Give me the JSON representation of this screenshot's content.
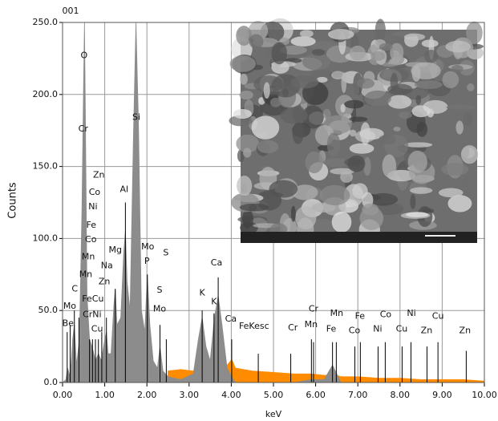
{
  "chart_data": {
    "type": "spectrum",
    "title": "001",
    "x_label": "keV",
    "y_label": "Counts",
    "xlim": [
      0,
      10
    ],
    "ylim": [
      0,
      250
    ],
    "xticks": [
      {
        "value": 0,
        "label": "0.00"
      },
      {
        "value": 1,
        "label": "1.00"
      },
      {
        "value": 2,
        "label": "2.00"
      },
      {
        "value": 3,
        "label": "3.00"
      },
      {
        "value": 4,
        "label": "4.00"
      },
      {
        "value": 5,
        "label": "5.00"
      },
      {
        "value": 6,
        "label": "6.00"
      },
      {
        "value": 7,
        "label": "7.00"
      },
      {
        "value": 8,
        "label": "8.00"
      },
      {
        "value": 9,
        "label": "9.00"
      },
      {
        "value": 10,
        "label": "10.00"
      }
    ],
    "yticks": [
      {
        "value": 0,
        "label": "0.0"
      },
      {
        "value": 50,
        "label": "50.0"
      },
      {
        "value": 100,
        "label": "100.0"
      },
      {
        "value": 150,
        "label": "150.0"
      },
      {
        "value": 200,
        "label": "200.0"
      },
      {
        "value": 250,
        "label": "250.0"
      }
    ],
    "grid": true,
    "x": [
      0,
      0.08,
      0.12,
      0.18,
      0.24,
      0.28,
      0.33,
      0.4,
      0.46,
      0.5,
      0.52,
      0.54,
      0.58,
      0.64,
      0.7,
      0.78,
      0.85,
      0.92,
      1.0,
      1.04,
      1.08,
      1.15,
      1.22,
      1.25,
      1.29,
      1.38,
      1.45,
      1.49,
      1.53,
      1.6,
      1.68,
      1.74,
      1.8,
      1.87,
      1.95,
      2.01,
      2.07,
      2.15,
      2.25,
      2.31,
      2.38,
      2.5,
      2.8,
      3.1,
      3.22,
      3.31,
      3.4,
      3.5,
      3.6,
      3.69,
      3.78,
      3.9,
      4.01,
      4.1,
      4.5,
      5.0,
      5.5,
      5.9,
      6.2,
      6.32,
      6.4,
      6.5,
      6.6,
      7.0,
      7.5,
      8.0,
      8.5,
      9.0,
      9.5,
      10.0
    ],
    "series": [
      {
        "color": "#ff8c00",
        "values": [
          null,
          null,
          null,
          null,
          null,
          null,
          null,
          null,
          null,
          null,
          null,
          null,
          null,
          null,
          null,
          null,
          null,
          null,
          null,
          null,
          null,
          null,
          null,
          null,
          null,
          null,
          null,
          null,
          null,
          null,
          null,
          null,
          null,
          null,
          null,
          null,
          null,
          null,
          null,
          null,
          null,
          8,
          9,
          8,
          8,
          8,
          9,
          10,
          10,
          12,
          11,
          12,
          16,
          10,
          8,
          7,
          6,
          6,
          5,
          5,
          5,
          5,
          4,
          4,
          3,
          3,
          2,
          2,
          2,
          1
        ]
      },
      {
        "color": "#8c8c8c",
        "values": [
          0,
          2,
          10,
          4,
          30,
          40,
          12,
          30,
          120,
          210,
          250,
          190,
          60,
          30,
          25,
          15,
          20,
          15,
          30,
          35,
          20,
          20,
          55,
          65,
          40,
          45,
          90,
          105,
          70,
          50,
          170,
          250,
          180,
          50,
          35,
          75,
          40,
          15,
          10,
          25,
          8,
          4,
          2,
          6,
          30,
          45,
          25,
          15,
          45,
          60,
          40,
          10,
          4,
          0,
          0,
          0,
          0,
          2,
          2,
          8,
          12,
          6,
          0,
          0,
          0,
          0,
          0,
          0,
          0,
          0
        ]
      }
    ],
    "markers": [
      {
        "x": 0.11,
        "y": 35
      },
      {
        "x": 0.18,
        "y": 40
      },
      {
        "x": 0.28,
        "y": 50
      },
      {
        "x": 0.39,
        "y": 45
      },
      {
        "x": 0.64,
        "y": 30
      },
      {
        "x": 0.71,
        "y": 30
      },
      {
        "x": 0.78,
        "y": 30
      },
      {
        "x": 0.85,
        "y": 30
      },
      {
        "x": 0.93,
        "y": 35
      },
      {
        "x": 1.04,
        "y": 45
      },
      {
        "x": 1.25,
        "y": 65
      },
      {
        "x": 1.49,
        "y": 125
      },
      {
        "x": 2.01,
        "y": 75
      },
      {
        "x": 2.31,
        "y": 40
      },
      {
        "x": 2.46,
        "y": 30
      },
      {
        "x": 3.31,
        "y": 50
      },
      {
        "x": 3.59,
        "y": 48
      },
      {
        "x": 3.69,
        "y": 73
      },
      {
        "x": 4.01,
        "y": 30
      },
      {
        "x": 4.64,
        "y": 20
      },
      {
        "x": 5.41,
        "y": 20
      },
      {
        "x": 5.9,
        "y": 30
      },
      {
        "x": 5.95,
        "y": 28
      },
      {
        "x": 6.4,
        "y": 28
      },
      {
        "x": 6.49,
        "y": 28
      },
      {
        "x": 6.93,
        "y": 25
      },
      {
        "x": 7.06,
        "y": 28
      },
      {
        "x": 7.48,
        "y": 25
      },
      {
        "x": 7.65,
        "y": 28
      },
      {
        "x": 8.05,
        "y": 25
      },
      {
        "x": 8.26,
        "y": 28
      },
      {
        "x": 8.64,
        "y": 25
      },
      {
        "x": 8.9,
        "y": 28
      },
      {
        "x": 9.57,
        "y": 22
      }
    ],
    "annotations": [
      {
        "text": "O",
        "x": 0.51,
        "y": 227
      },
      {
        "text": "Cr",
        "x": 0.49,
        "y": 176
      },
      {
        "text": "Si",
        "x": 1.75,
        "y": 184
      },
      {
        "text": "Zn",
        "x": 0.86,
        "y": 144
      },
      {
        "text": "Co",
        "x": 0.76,
        "y": 132
      },
      {
        "text": "Al",
        "x": 1.46,
        "y": 134
      },
      {
        "text": "Ni",
        "x": 0.72,
        "y": 122
      },
      {
        "text": "Fe",
        "x": 0.68,
        "y": 109
      },
      {
        "text": "Co",
        "x": 0.67,
        "y": 99
      },
      {
        "text": "Mg",
        "x": 1.25,
        "y": 92
      },
      {
        "text": "Mo",
        "x": 2.02,
        "y": 94
      },
      {
        "text": "Mn",
        "x": 0.61,
        "y": 87
      },
      {
        "text": "P",
        "x": 2.0,
        "y": 84
      },
      {
        "text": "S",
        "x": 2.45,
        "y": 90
      },
      {
        "text": "Na",
        "x": 1.05,
        "y": 81
      },
      {
        "text": "Mn",
        "x": 0.55,
        "y": 75
      },
      {
        "text": "Ca",
        "x": 3.65,
        "y": 83
      },
      {
        "text": "C",
        "x": 0.29,
        "y": 65
      },
      {
        "text": "Zn",
        "x": 0.99,
        "y": 70
      },
      {
        "text": "S",
        "x": 2.3,
        "y": 64
      },
      {
        "text": "Mo",
        "x": 0.17,
        "y": 53
      },
      {
        "text": "FeCu",
        "x": 0.72,
        "y": 58
      },
      {
        "text": "K",
        "x": 3.31,
        "y": 62
      },
      {
        "text": "K",
        "x": 3.59,
        "y": 56
      },
      {
        "text": "Mo",
        "x": 2.3,
        "y": 51
      },
      {
        "text": "CrNi",
        "x": 0.7,
        "y": 47
      },
      {
        "text": "Cr",
        "x": 5.95,
        "y": 51
      },
      {
        "text": "Ca",
        "x": 3.99,
        "y": 44
      },
      {
        "text": "Mn",
        "x": 6.5,
        "y": 48
      },
      {
        "text": "Fe",
        "x": 7.05,
        "y": 46
      },
      {
        "text": "Co",
        "x": 7.66,
        "y": 47
      },
      {
        "text": "Ni",
        "x": 8.27,
        "y": 48
      },
      {
        "text": "Cu",
        "x": 8.9,
        "y": 46
      },
      {
        "text": "Be",
        "x": 0.13,
        "y": 41
      },
      {
        "text": "FeKesc",
        "x": 4.54,
        "y": 39
      },
      {
        "text": "Cr",
        "x": 5.46,
        "y": 38
      },
      {
        "text": "Mn",
        "x": 5.89,
        "y": 40
      },
      {
        "text": "Fe",
        "x": 6.37,
        "y": 37
      },
      {
        "text": "Co",
        "x": 6.92,
        "y": 36
      },
      {
        "text": "Ni",
        "x": 7.47,
        "y": 37
      },
      {
        "text": "Cu",
        "x": 8.04,
        "y": 37
      },
      {
        "text": "Zn",
        "x": 8.63,
        "y": 36
      },
      {
        "text": "Zn",
        "x": 9.54,
        "y": 36
      },
      {
        "text": "Cu",
        "x": 0.82,
        "y": 37
      }
    ]
  }
}
